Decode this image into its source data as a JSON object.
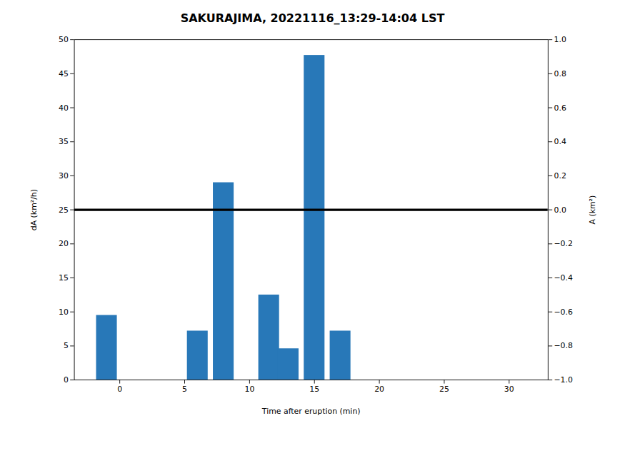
{
  "chart_data": {
    "type": "bar",
    "title": "SAKURAJIMA, 20221116_13:29-14:04 LST",
    "x": [
      -1.0,
      6.0,
      8.0,
      11.5,
      13.0,
      15.0,
      17.0
    ],
    "values": [
      9.5,
      7.2,
      29.0,
      12.5,
      4.6,
      47.7,
      7.2
    ],
    "color": "#2878b8",
    "hline": {
      "y": 25.0,
      "color": "black"
    },
    "xlabel": "Time after eruption (min)",
    "ylabel": "dA (km²/h)",
    "y2label": "A (km²)",
    "xlim": [
      -3.5,
      33
    ],
    "xticks": [
      0,
      5,
      10,
      15,
      20,
      25,
      30
    ],
    "ylim": [
      0,
      50
    ],
    "yticks": [
      0,
      5,
      10,
      15,
      20,
      25,
      30,
      35,
      40,
      45,
      50
    ],
    "y2lim": [
      -1,
      1
    ],
    "y2ticks": [
      {
        "value": -1,
        "label": "−1.0"
      },
      {
        "value": -0.8,
        "label": "−0.8"
      },
      {
        "value": -0.6,
        "label": "−0.6"
      },
      {
        "value": -0.4,
        "label": "−0.4"
      },
      {
        "value": -0.2,
        "label": "−0.2"
      },
      {
        "value": 0,
        "label": "0.0"
      },
      {
        "value": 0.2,
        "label": "0.2"
      },
      {
        "value": 0.4,
        "label": "0.4"
      },
      {
        "value": 0.6,
        "label": "0.6"
      },
      {
        "value": 0.8,
        "label": "0.8"
      },
      {
        "value": 1,
        "label": "1.0"
      }
    ],
    "grid": false
  }
}
